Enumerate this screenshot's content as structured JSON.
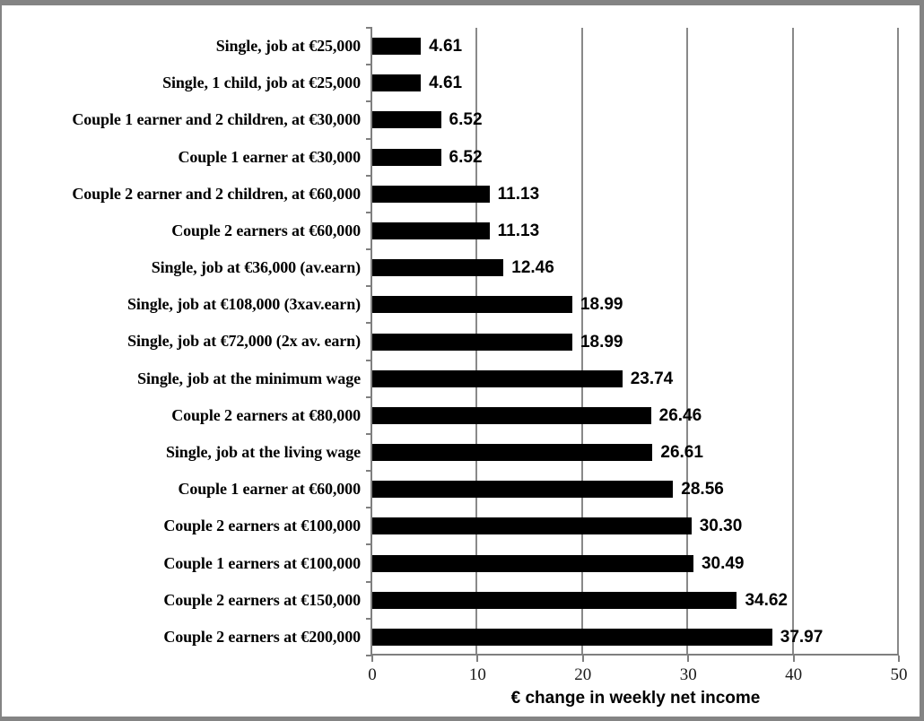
{
  "frame": {
    "background": "#ffffff",
    "border_color": "#848484"
  },
  "chart_data": {
    "type": "bar",
    "orientation": "horizontal",
    "title": "",
    "xlabel": "€ change in weekly net income",
    "ylabel": "",
    "xlim": [
      0,
      50
    ],
    "x_tick_values": [
      0,
      10,
      20,
      30,
      40,
      50
    ],
    "x_tick_labels": [
      "0",
      "10",
      "20",
      "30",
      "40",
      "50"
    ],
    "grid": "vertical-gridlines-at-ticks",
    "legend": "none",
    "bar_color": "#000000",
    "gridline_color": "#898989",
    "axis_color": "#7f7f7f",
    "categories": [
      "Single, job at €25,000",
      "Single, 1 child, job at €25,000",
      "Couple 1 earner and 2 children, at €30,000",
      "Couple 1 earner at €30,000",
      "Couple 2 earner and 2 children, at €60,000",
      "Couple 2 earners at €60,000",
      "Single, job at €36,000 (av.earn)",
      "Single, job at €108,000 (3xav.earn)",
      "Single, job at €72,000 (2x av. earn)",
      "Single, job at the minimum wage",
      "Couple 2 earners at €80,000",
      "Single, job at the living wage",
      "Couple 1 earner at €60,000",
      "Couple 2 earners at €100,000",
      "Couple 1 earners at €100,000",
      "Couple 2 earners at €150,000",
      "Couple 2 earners at €200,000"
    ],
    "values": [
      4.61,
      4.61,
      6.52,
      6.52,
      11.13,
      11.13,
      12.46,
      18.99,
      18.99,
      23.74,
      26.46,
      26.61,
      28.56,
      30.3,
      30.49,
      34.62,
      37.97
    ],
    "value_labels": [
      "4.61",
      "4.61",
      "6.52",
      "6.52",
      "11.13",
      "11.13",
      "12.46",
      "18.99",
      "18.99",
      "23.74",
      "26.46",
      "26.61",
      "28.56",
      "30.30",
      "30.49",
      "34.62",
      "37.97"
    ]
  }
}
